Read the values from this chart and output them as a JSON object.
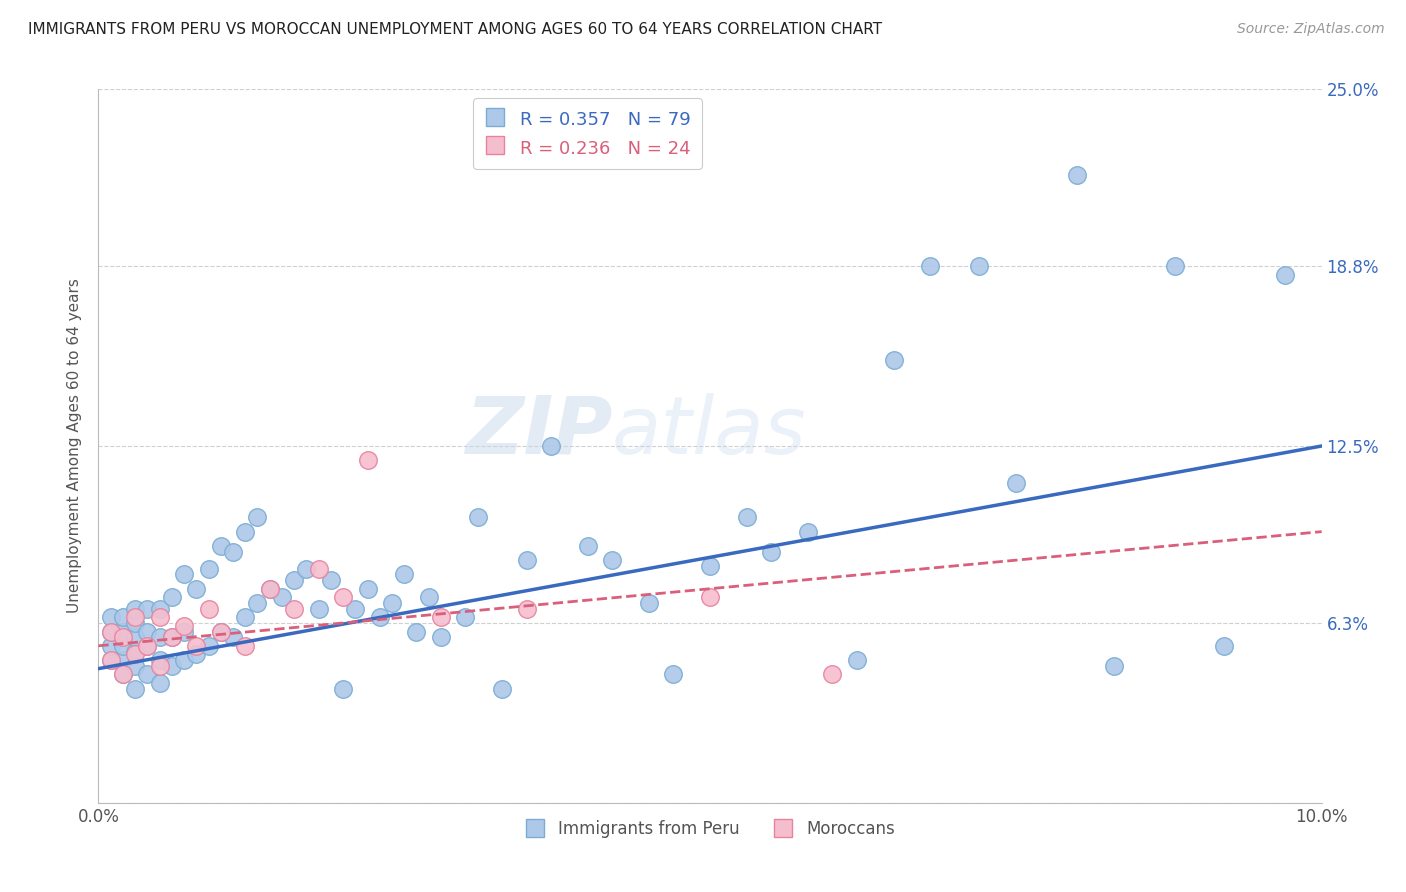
{
  "title": "IMMIGRANTS FROM PERU VS MOROCCAN UNEMPLOYMENT AMONG AGES 60 TO 64 YEARS CORRELATION CHART",
  "source": "Source: ZipAtlas.com",
  "ylabel": "Unemployment Among Ages 60 to 64 years",
  "xlim": [
    0.0,
    0.1
  ],
  "ylim": [
    0.0,
    0.25
  ],
  "xticks": [
    0.0,
    0.02,
    0.04,
    0.06,
    0.08,
    0.1
  ],
  "xticklabels": [
    "0.0%",
    "",
    "",
    "",
    "",
    "10.0%"
  ],
  "ytick_vals": [
    0.0,
    0.063,
    0.125,
    0.188,
    0.25
  ],
  "ytick_labels_right": [
    "",
    "6.3%",
    "12.5%",
    "18.8%",
    "25.0%"
  ],
  "legend_peru_R": "0.357",
  "legend_peru_N": "79",
  "legend_moroc_R": "0.236",
  "legend_moroc_N": "24",
  "peru_color": "#adc8e8",
  "peru_edge_color": "#7badd4",
  "moroc_color": "#f5bece",
  "moroc_edge_color": "#e8829e",
  "trend_peru_color": "#3a6abf",
  "trend_moroc_color": "#d95f7a",
  "watermark_zip": "ZIP",
  "watermark_atlas": "atlas",
  "peru_x": [
    0.001,
    0.001,
    0.001,
    0.001,
    0.002,
    0.002,
    0.002,
    0.002,
    0.002,
    0.003,
    0.003,
    0.003,
    0.003,
    0.003,
    0.003,
    0.004,
    0.004,
    0.004,
    0.004,
    0.005,
    0.005,
    0.005,
    0.005,
    0.006,
    0.006,
    0.006,
    0.007,
    0.007,
    0.007,
    0.008,
    0.008,
    0.009,
    0.009,
    0.01,
    0.01,
    0.011,
    0.011,
    0.012,
    0.012,
    0.013,
    0.013,
    0.014,
    0.015,
    0.016,
    0.017,
    0.018,
    0.019,
    0.02,
    0.021,
    0.022,
    0.023,
    0.024,
    0.025,
    0.026,
    0.027,
    0.028,
    0.03,
    0.031,
    0.033,
    0.035,
    0.037,
    0.04,
    0.042,
    0.045,
    0.047,
    0.05,
    0.053,
    0.055,
    0.058,
    0.062,
    0.065,
    0.068,
    0.072,
    0.075,
    0.08,
    0.083,
    0.088,
    0.092,
    0.097
  ],
  "peru_y": [
    0.05,
    0.055,
    0.06,
    0.065,
    0.045,
    0.05,
    0.055,
    0.06,
    0.065,
    0.04,
    0.048,
    0.053,
    0.058,
    0.063,
    0.068,
    0.045,
    0.055,
    0.06,
    0.068,
    0.042,
    0.05,
    0.058,
    0.068,
    0.048,
    0.058,
    0.072,
    0.05,
    0.06,
    0.08,
    0.052,
    0.075,
    0.055,
    0.082,
    0.06,
    0.09,
    0.058,
    0.088,
    0.065,
    0.095,
    0.07,
    0.1,
    0.075,
    0.072,
    0.078,
    0.082,
    0.068,
    0.078,
    0.04,
    0.068,
    0.075,
    0.065,
    0.07,
    0.08,
    0.06,
    0.072,
    0.058,
    0.065,
    0.1,
    0.04,
    0.085,
    0.125,
    0.09,
    0.085,
    0.07,
    0.045,
    0.083,
    0.1,
    0.088,
    0.095,
    0.05,
    0.155,
    0.188,
    0.188,
    0.112,
    0.22,
    0.048,
    0.188,
    0.055,
    0.185
  ],
  "moroc_x": [
    0.001,
    0.001,
    0.002,
    0.002,
    0.003,
    0.003,
    0.004,
    0.005,
    0.005,
    0.006,
    0.007,
    0.008,
    0.009,
    0.01,
    0.012,
    0.014,
    0.016,
    0.018,
    0.02,
    0.022,
    0.028,
    0.035,
    0.05,
    0.06
  ],
  "moroc_y": [
    0.05,
    0.06,
    0.045,
    0.058,
    0.052,
    0.065,
    0.055,
    0.048,
    0.065,
    0.058,
    0.062,
    0.055,
    0.068,
    0.06,
    0.055,
    0.075,
    0.068,
    0.082,
    0.072,
    0.12,
    0.065,
    0.068,
    0.072,
    0.045
  ]
}
